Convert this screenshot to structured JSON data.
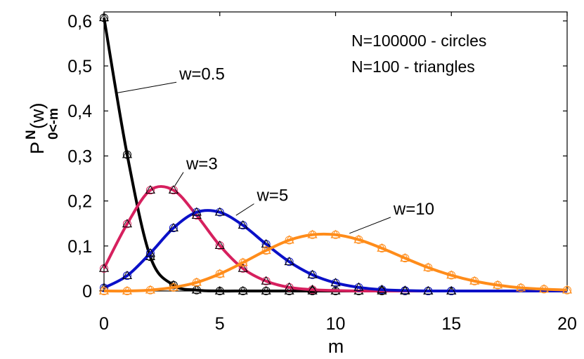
{
  "chart_data": {
    "type": "line",
    "xlabel": "m",
    "ylabel": {
      "main": "P",
      "sup": "N",
      "sub": "0<-m",
      "arg": "(w)"
    },
    "xlim": [
      0,
      20
    ],
    "ylim": [
      0,
      0.62
    ],
    "x_ticks": [
      0,
      5,
      10,
      15,
      20
    ],
    "x_tick_labels": [
      "0",
      "5",
      "10",
      "15",
      "20"
    ],
    "y_ticks": [
      0,
      0.1,
      0.2,
      0.3,
      0.4,
      0.5,
      0.6
    ],
    "y_tick_labels": [
      "0",
      "0,1",
      "0,2",
      "0,3",
      "0,4",
      "0,5",
      "0,6"
    ],
    "notes": [
      "N=100000 - circles",
      "N=100 - triangles"
    ],
    "x": [
      0,
      1,
      2,
      3,
      4,
      5,
      6,
      7,
      8,
      9,
      10,
      11,
      12,
      13,
      14,
      15,
      16,
      17,
      18,
      19,
      20
    ],
    "series": [
      {
        "name": "w=0.5",
        "color": "#000000",
        "values": [
          0.607,
          0.303,
          0.076,
          0.013,
          0.002,
          0.0,
          0.0,
          0.0,
          0.0,
          0.0,
          0.0,
          0.0,
          0.0,
          0.0,
          0.0,
          0.0,
          0.0,
          0.0,
          0.0,
          0.0,
          0.0
        ],
        "marker_range": [
          0,
          15
        ]
      },
      {
        "name": "w=3",
        "color": "#d6205e",
        "values": [
          0.05,
          0.149,
          0.224,
          0.224,
          0.168,
          0.101,
          0.05,
          0.022,
          0.008,
          0.003,
          0.001,
          0.0,
          0.0,
          0.0,
          0.0,
          0.0,
          0.0,
          0.0,
          0.0,
          0.0,
          0.0
        ],
        "marker_range": [
          0,
          9
        ]
      },
      {
        "name": "w=5",
        "color": "#0a10c8",
        "values": [
          0.007,
          0.034,
          0.084,
          0.14,
          0.175,
          0.175,
          0.146,
          0.104,
          0.065,
          0.036,
          0.018,
          0.008,
          0.003,
          0.001,
          0.0,
          0.0,
          0.0,
          0.0,
          0.0,
          0.0,
          0.0
        ],
        "marker_range": [
          0,
          15
        ]
      },
      {
        "name": "w=10",
        "color": "#ff8c1a",
        "values": [
          0.0,
          0.0,
          0.002,
          0.008,
          0.019,
          0.038,
          0.063,
          0.09,
          0.113,
          0.125,
          0.125,
          0.114,
          0.095,
          0.073,
          0.052,
          0.035,
          0.022,
          0.013,
          0.007,
          0.004,
          0.002
        ],
        "marker_range": [
          0,
          20
        ]
      }
    ],
    "annotations": [
      {
        "text": "w=0.5",
        "series": "w=0.5",
        "data_x": 3.25,
        "data_y": 0.47,
        "arrow_to": [
          0.55,
          0.44
        ]
      },
      {
        "text": "w=3",
        "series": "w=3",
        "data_x": 3.55,
        "data_y": 0.27,
        "arrow_to": [
          3.05,
          0.233
        ]
      },
      {
        "text": "w=5",
        "series": "w=5",
        "data_x": 6.6,
        "data_y": 0.2,
        "arrow_to": [
          5.7,
          0.168
        ]
      },
      {
        "text": "w=10",
        "series": "w=10",
        "data_x": 12.5,
        "data_y": 0.17,
        "arrow_to": [
          10.6,
          0.128
        ]
      }
    ],
    "grid": false,
    "legend": "none"
  }
}
